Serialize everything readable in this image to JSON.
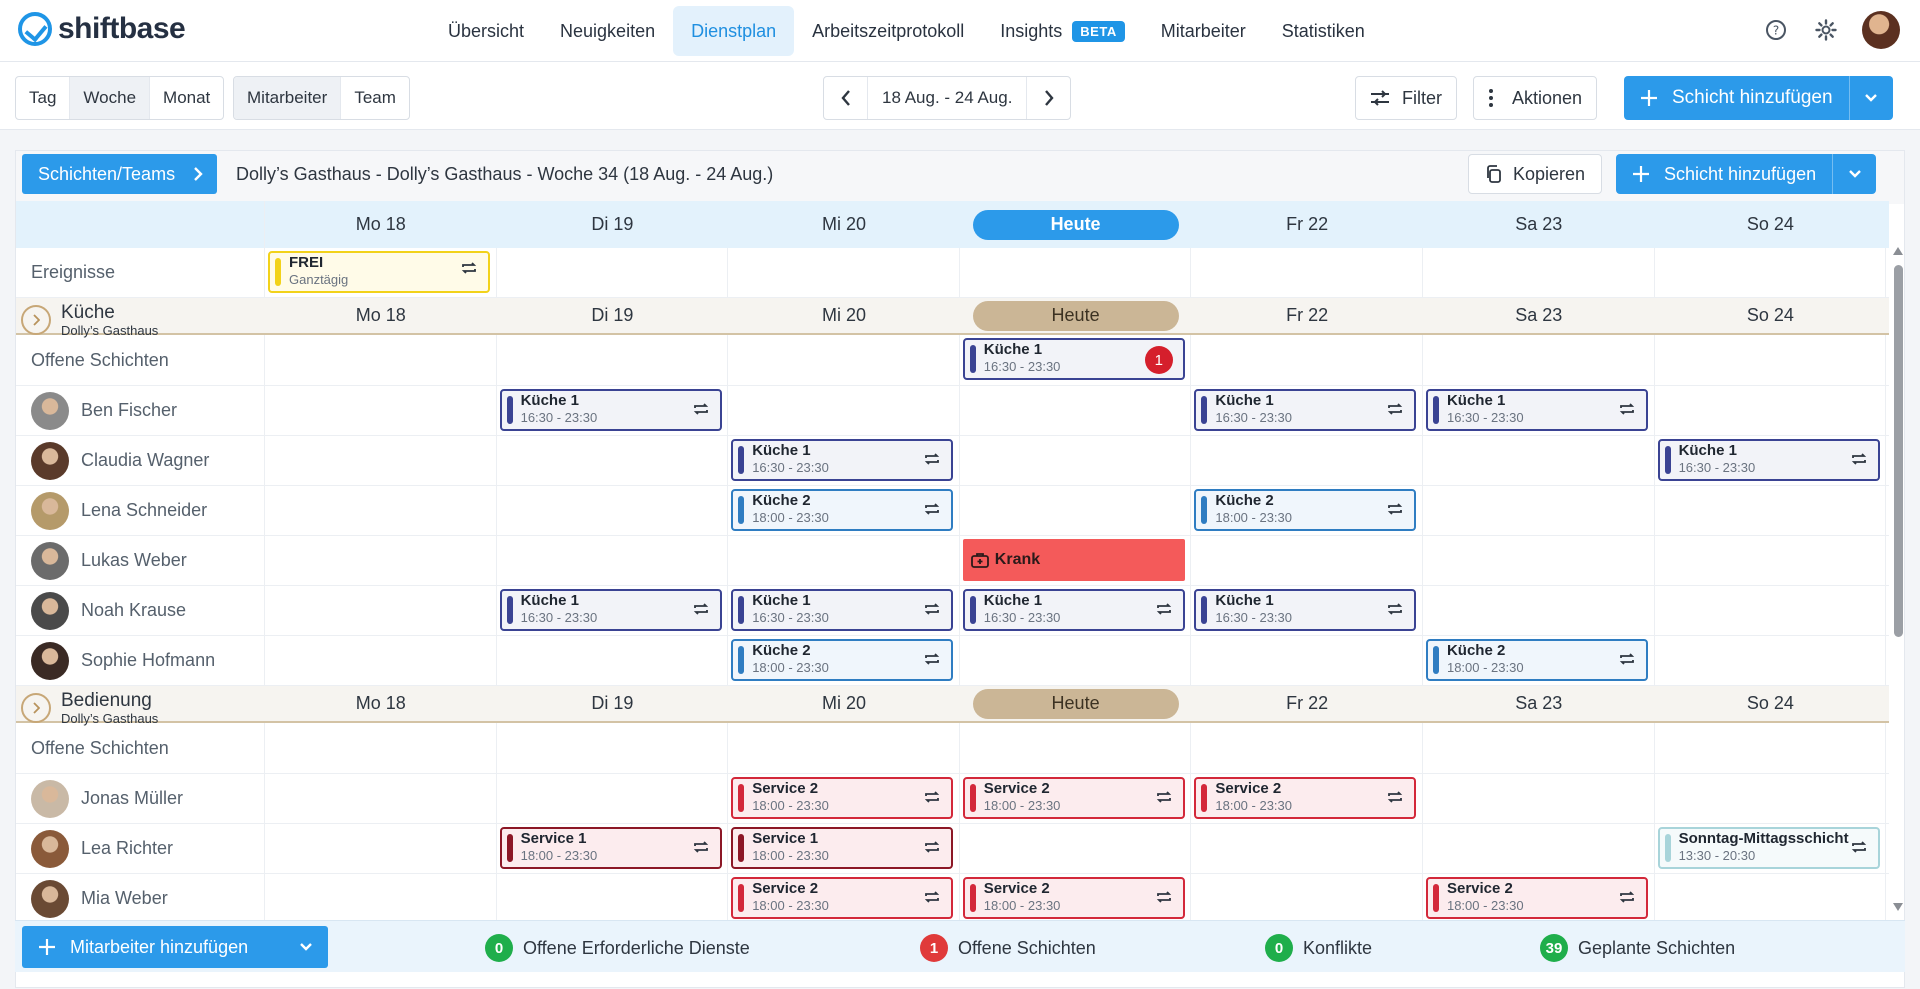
{
  "app": {
    "logo_text": "shiftbase"
  },
  "nav": {
    "items": [
      "Übersicht",
      "Neuigkeiten",
      "Dienstplan",
      "Arbeitszeitprotokoll",
      "Insights",
      "Mitarbeiter",
      "Statistiken"
    ],
    "active": "Dienstplan",
    "beta_label": "BETA"
  },
  "toolbar": {
    "view_modes": [
      "Tag",
      "Woche",
      "Monat"
    ],
    "selected_view": "Woche",
    "group_modes": [
      "Mitarbeiter",
      "Team"
    ],
    "selected_group": "Mitarbeiter",
    "date_range": "18 Aug. - 24 Aug.",
    "filter_label": "Filter",
    "actions_label": "Aktionen",
    "add_shift_label": "Schicht hinzufügen"
  },
  "panel": {
    "teams_button": "Schichten/Teams",
    "title": "Dolly’s Gasthaus - Dolly’s Gasthaus - Woche 34 (18 Aug. - 24 Aug.)",
    "copy_label": "Kopieren",
    "add_shift_label": "Schicht hinzufügen"
  },
  "days": [
    "Mo 18",
    "Di 19",
    "Mi 20",
    "Heute",
    "Fr 22",
    "Sa 23",
    "So 24"
  ],
  "events": {
    "label": "Ereignisse",
    "items": [
      {
        "day": 0,
        "title": "FREI",
        "sub": "Ganztägig"
      }
    ]
  },
  "groups": [
    {
      "name": "Küche",
      "location": "Dolly’s Gasthaus",
      "open_label": "Offene Schichten",
      "open_shifts": [
        {
          "day": 3,
          "title": "Küche 1",
          "time": "16:30 - 23:30",
          "type": "k1",
          "badge": "1"
        }
      ],
      "employees": [
        {
          "name": "Ben Fischer",
          "avatar": "#8a8a8a",
          "shifts": [
            {
              "day": 1,
              "title": "Küche 1",
              "time": "16:30 - 23:30",
              "type": "k1"
            },
            {
              "day": 4,
              "title": "Küche 1",
              "time": "16:30 - 23:30",
              "type": "k1"
            },
            {
              "day": 5,
              "title": "Küche 1",
              "time": "16:30 - 23:30",
              "type": "k1"
            }
          ]
        },
        {
          "name": "Claudia Wagner",
          "avatar": "#5a3a2a",
          "shifts": [
            {
              "day": 2,
              "title": "Küche 1",
              "time": "16:30 - 23:30",
              "type": "k1"
            },
            {
              "day": 6,
              "title": "Küche 1",
              "time": "16:30 - 23:30",
              "type": "k1"
            }
          ]
        },
        {
          "name": "Lena Schneider",
          "avatar": "#b59a6a",
          "shifts": [
            {
              "day": 2,
              "title": "Küche 2",
              "time": "18:00 - 23:30",
              "type": "k2"
            },
            {
              "day": 4,
              "title": "Küche 2",
              "time": "18:00 - 23:30",
              "type": "k2"
            }
          ]
        },
        {
          "name": "Lukas Weber",
          "avatar": "#6b6b6b",
          "shifts": [
            {
              "day": 3,
              "title": "Krank",
              "time": "",
              "type": "krank"
            }
          ]
        },
        {
          "name": "Noah Krause",
          "avatar": "#4a4a4a",
          "shifts": [
            {
              "day": 1,
              "title": "Küche 1",
              "time": "16:30 - 23:30",
              "type": "k1"
            },
            {
              "day": 2,
              "title": "Küche 1",
              "time": "16:30 - 23:30",
              "type": "k1"
            },
            {
              "day": 3,
              "title": "Küche 1",
              "time": "16:30 - 23:30",
              "type": "k1"
            },
            {
              "day": 4,
              "title": "Küche 1",
              "time": "16:30 - 23:30",
              "type": "k1"
            }
          ]
        },
        {
          "name": "Sophie Hofmann",
          "avatar": "#3a2a24",
          "shifts": [
            {
              "day": 2,
              "title": "Küche 2",
              "time": "18:00 - 23:30",
              "type": "k2"
            },
            {
              "day": 5,
              "title": "Küche 2",
              "time": "18:00 - 23:30",
              "type": "k2"
            }
          ]
        }
      ]
    },
    {
      "name": "Bedienung",
      "location": "Dolly’s Gasthaus",
      "open_label": "Offene Schichten",
      "open_shifts": [],
      "employees": [
        {
          "name": "Jonas Müller",
          "avatar": "#c9b9a6",
          "shifts": [
            {
              "day": 2,
              "title": "Service 2",
              "time": "18:00 - 23:30",
              "type": "s2"
            },
            {
              "day": 3,
              "title": "Service 2",
              "time": "18:00 - 23:30",
              "type": "s2"
            },
            {
              "day": 4,
              "title": "Service 2",
              "time": "18:00 - 23:30",
              "type": "s2"
            }
          ]
        },
        {
          "name": "Lea Richter",
          "avatar": "#8a5a3a",
          "shifts": [
            {
              "day": 1,
              "title": "Service 1",
              "time": "18:00 - 23:30",
              "type": "s1"
            },
            {
              "day": 2,
              "title": "Service 1",
              "time": "18:00 - 23:30",
              "type": "s1"
            },
            {
              "day": 6,
              "title": "Sonntag-Mittagsschicht",
              "time": "13:30 - 20:30",
              "type": "so"
            }
          ]
        },
        {
          "name": "Mia Weber",
          "avatar": "#6a4a34",
          "shifts": [
            {
              "day": 2,
              "title": "Service 2",
              "time": "18:00 - 23:30",
              "type": "s2"
            },
            {
              "day": 3,
              "title": "Service 2",
              "time": "18:00 - 23:30",
              "type": "s2"
            },
            {
              "day": 5,
              "title": "Service 2",
              "time": "18:00 - 23:30",
              "type": "s2"
            }
          ]
        }
      ]
    }
  ],
  "footer": {
    "add_employee_label": "Mitarbeiter hinzufügen",
    "stats": [
      {
        "value": "0",
        "label": "Offene Erforderliche Dienste",
        "color": "#1fae4b"
      },
      {
        "value": "1",
        "label": "Offene Schichten",
        "color": "#e03a3a"
      },
      {
        "value": "0",
        "label": "Konflikte",
        "color": "#1fae4b"
      },
      {
        "value": "39",
        "label": "Geplante Schichten",
        "color": "#1fae4b"
      }
    ]
  },
  "colors": {
    "primary": "#2c9aea",
    "today_tan": "#cbb696"
  }
}
